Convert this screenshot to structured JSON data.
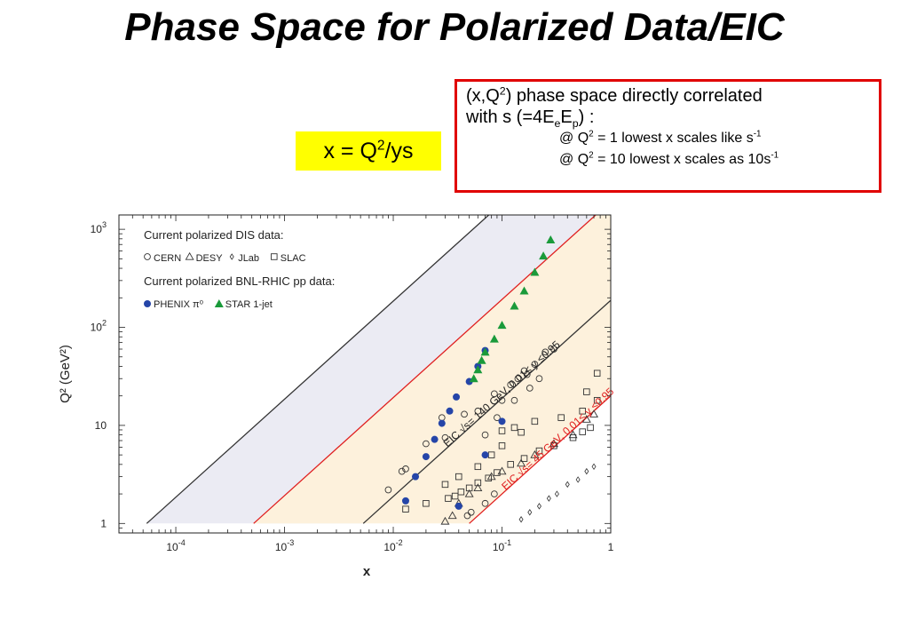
{
  "slide": {
    "title": "Phase Space for Polarized Data/EIC",
    "formula": {
      "lhs": "x = Q",
      "sup": "2",
      "rhs": "/ys"
    },
    "note": {
      "p1": "(x,Q",
      "p1_sup": "2",
      "p2": ") phase space directly correlated",
      "l2a": "with s (=4E",
      "l2_sub1": "e",
      "l2b": "E",
      "l2_sub2": "p",
      "l2c": ") :",
      "l3a": "@ Q",
      "l3_sup": "2",
      "l3b": " = 1   lowest x scales like s",
      "l3_sup2": "-1",
      "l4a": "@ Q",
      "l4_sup": "2",
      "l4b": " = 10 lowest x scales as 10s",
      "l4_sup2": "-1"
    }
  },
  "colors": {
    "band_eic140": "#ebebf3",
    "band_eic45": "#fdf1dc",
    "line_eic140": "#333333",
    "line_eic45": "#e02020",
    "phenix": "#2545a8",
    "star": "#1a9a3a",
    "open_marker": "#333333"
  },
  "chart_data": {
    "type": "scatter",
    "xscale": "log",
    "yscale": "log",
    "xlim": [
      3e-05,
      1
    ],
    "ylim": [
      0.8,
      1400
    ],
    "xlabel": "x",
    "ylabel": "Q² (GeV²)",
    "xticks": [
      {
        "v": 0.0001,
        "base": "10",
        "exp": "-4"
      },
      {
        "v": 0.001,
        "base": "10",
        "exp": "-3"
      },
      {
        "v": 0.01,
        "base": "10",
        "exp": "-2"
      },
      {
        "v": 0.1,
        "base": "10",
        "exp": "-1"
      },
      {
        "v": 1,
        "base": "1",
        "exp": ""
      }
    ],
    "yticks": [
      {
        "v": 1,
        "base": "1",
        "exp": ""
      },
      {
        "v": 10,
        "base": "10",
        "exp": ""
      },
      {
        "v": 100,
        "base": "10",
        "exp": "2"
      },
      {
        "v": 1000,
        "base": "10",
        "exp": "3"
      }
    ],
    "legend": {
      "head1": "Current polarized DIS data:",
      "entries1": [
        {
          "marker": "circle",
          "label": "CERN"
        },
        {
          "marker": "triangle",
          "label": "DESY"
        },
        {
          "marker": "diamond",
          "label": "JLab"
        },
        {
          "marker": "square",
          "label": "SLAC"
        }
      ],
      "head2": "Current polarized BNL-RHIC pp data:",
      "entries2": [
        {
          "marker": "filled-circle",
          "label": "PHENIX π⁰"
        },
        {
          "marker": "filled-triangle",
          "label": "STAR 1-jet"
        }
      ]
    },
    "bands": [
      {
        "name": "EIC √s= 140 GeV, 0.01≤ y ≤0.95",
        "x_low_at_q1": 5.4e-05,
        "x_high_at_q1": 0.0053
      },
      {
        "name": "EIC √s= 45 GeV, 0.01≤ y ≤0.95",
        "x_low_at_q1": 0.00052,
        "x_high_at_q1": 0.05
      }
    ],
    "series": [
      {
        "name": "CERN",
        "marker": "circle",
        "points": [
          [
            0.048,
            1.2
          ],
          [
            0.052,
            1.3
          ],
          [
            0.07,
            1.6
          ],
          [
            0.085,
            2.0
          ],
          [
            0.013,
            3.6
          ],
          [
            0.012,
            3.4
          ],
          [
            0.009,
            2.2
          ],
          [
            0.02,
            6.5
          ],
          [
            0.03,
            7.5
          ],
          [
            0.028,
            12
          ],
          [
            0.045,
            13
          ],
          [
            0.06,
            14
          ],
          [
            0.085,
            21
          ],
          [
            0.1,
            18
          ],
          [
            0.12,
            26
          ],
          [
            0.14,
            30
          ],
          [
            0.16,
            36
          ],
          [
            0.2,
            42
          ],
          [
            0.25,
            56
          ],
          [
            0.3,
            60
          ],
          [
            0.13,
            18
          ],
          [
            0.18,
            24
          ],
          [
            0.22,
            30
          ],
          [
            0.09,
            12
          ],
          [
            0.07,
            8
          ],
          [
            0.17,
            33
          ]
        ]
      },
      {
        "name": "DESY",
        "marker": "triangle",
        "points": [
          [
            0.03,
            1.05
          ],
          [
            0.035,
            1.2
          ],
          [
            0.04,
            1.6
          ],
          [
            0.05,
            2.0
          ],
          [
            0.06,
            2.3
          ],
          [
            0.08,
            3.0
          ],
          [
            0.1,
            3.4
          ],
          [
            0.15,
            4.1
          ],
          [
            0.2,
            5.0
          ],
          [
            0.3,
            6.5
          ],
          [
            0.45,
            8.0
          ],
          [
            0.6,
            11.5
          ],
          [
            0.7,
            13
          ]
        ]
      },
      {
        "name": "JLab",
        "marker": "diamond",
        "points": [
          [
            0.15,
            1.1
          ],
          [
            0.18,
            1.3
          ],
          [
            0.22,
            1.5
          ],
          [
            0.27,
            1.8
          ],
          [
            0.32,
            2.0
          ],
          [
            0.4,
            2.5
          ],
          [
            0.5,
            2.8
          ],
          [
            0.6,
            3.4
          ],
          [
            0.7,
            3.8
          ]
        ]
      },
      {
        "name": "SLAC",
        "marker": "square",
        "points": [
          [
            0.032,
            1.8
          ],
          [
            0.037,
            1.9
          ],
          [
            0.042,
            2.1
          ],
          [
            0.05,
            2.3
          ],
          [
            0.06,
            2.6
          ],
          [
            0.075,
            2.9
          ],
          [
            0.09,
            3.3
          ],
          [
            0.12,
            4.0
          ],
          [
            0.16,
            4.6
          ],
          [
            0.22,
            5.5
          ],
          [
            0.3,
            6.2
          ],
          [
            0.45,
            7.5
          ],
          [
            0.55,
            8.6
          ],
          [
            0.65,
            9.5
          ],
          [
            0.03,
            2.5
          ],
          [
            0.04,
            3.0
          ],
          [
            0.06,
            3.8
          ],
          [
            0.08,
            5.0
          ],
          [
            0.1,
            6.2
          ],
          [
            0.15,
            8.5
          ],
          [
            0.2,
            11
          ],
          [
            0.35,
            12
          ],
          [
            0.55,
            14
          ],
          [
            0.75,
            18
          ],
          [
            0.013,
            1.4
          ],
          [
            0.02,
            1.6
          ],
          [
            0.1,
            8.8
          ],
          [
            0.13,
            9.5
          ],
          [
            0.6,
            22
          ],
          [
            0.75,
            34
          ]
        ]
      },
      {
        "name": "PHENIX π⁰",
        "marker": "filled-circle",
        "points": [
          [
            0.013,
            1.7
          ],
          [
            0.016,
            3.0
          ],
          [
            0.02,
            4.8
          ],
          [
            0.024,
            7.2
          ],
          [
            0.028,
            10.5
          ],
          [
            0.033,
            14
          ],
          [
            0.038,
            19.5
          ],
          [
            0.05,
            28
          ],
          [
            0.06,
            40
          ],
          [
            0.07,
            58
          ],
          [
            0.04,
            1.5
          ],
          [
            0.07,
            5.0
          ],
          [
            0.1,
            11
          ]
        ]
      },
      {
        "name": "STAR 1-jet",
        "marker": "filled-triangle",
        "points": [
          [
            0.055,
            30
          ],
          [
            0.06,
            37
          ],
          [
            0.065,
            46
          ],
          [
            0.07,
            56
          ],
          [
            0.085,
            76
          ],
          [
            0.1,
            105
          ],
          [
            0.13,
            165
          ],
          [
            0.16,
            235
          ],
          [
            0.2,
            365
          ],
          [
            0.24,
            535
          ],
          [
            0.28,
            780
          ]
        ]
      }
    ]
  }
}
